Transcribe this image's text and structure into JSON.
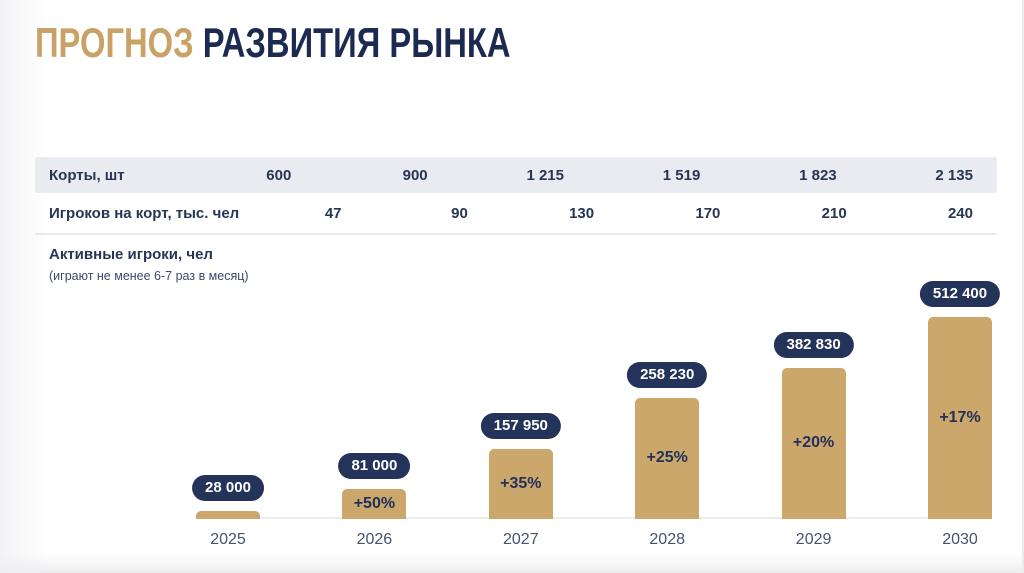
{
  "title": {
    "accent": "ПРОГНОЗ",
    "rest": " РАЗВИТИЯ РЫНКА"
  },
  "colors": {
    "accent_gold": "#C8A266",
    "navy": "#1C2A52",
    "bar_fill": "#CCA76C",
    "pill_bg": "#24335A",
    "pill_text": "#FFFFFF",
    "table_shaded_row_bg": "#E9EBF1",
    "table_text": "#273655",
    "axis_line": "#ECECEE"
  },
  "table": {
    "rows": [
      {
        "label": "Корты, шт",
        "values": [
          "600",
          "900",
          "1 215",
          "1 519",
          "1 823",
          "2 135"
        ]
      },
      {
        "label": "Игроков на корт, тыс. чел",
        "values": [
          "47",
          "90",
          "130",
          "170",
          "210",
          "240"
        ]
      }
    ]
  },
  "chart_data": {
    "type": "bar",
    "title": "Активные игроки, чел",
    "subtitle": "(играют не менее 6-7 раз в месяц)",
    "categories": [
      "2025",
      "2026",
      "2027",
      "2028",
      "2029",
      "2030"
    ],
    "values": [
      28000,
      81000,
      157950,
      258230,
      382830,
      512400
    ],
    "value_labels": [
      "28 000",
      "81 000",
      "157 950",
      "258 230",
      "382 830",
      "512 400"
    ],
    "growth_labels": [
      null,
      "+50%",
      "+35%",
      "+25%",
      "+20%",
      "+17%"
    ],
    "xlabel": "",
    "ylabel": "",
    "ylim": [
      0,
      512400
    ],
    "grid": false,
    "legend": false,
    "value_label_style": "dark rounded pill above each bar",
    "growth_label_position": "centered inside bar"
  }
}
